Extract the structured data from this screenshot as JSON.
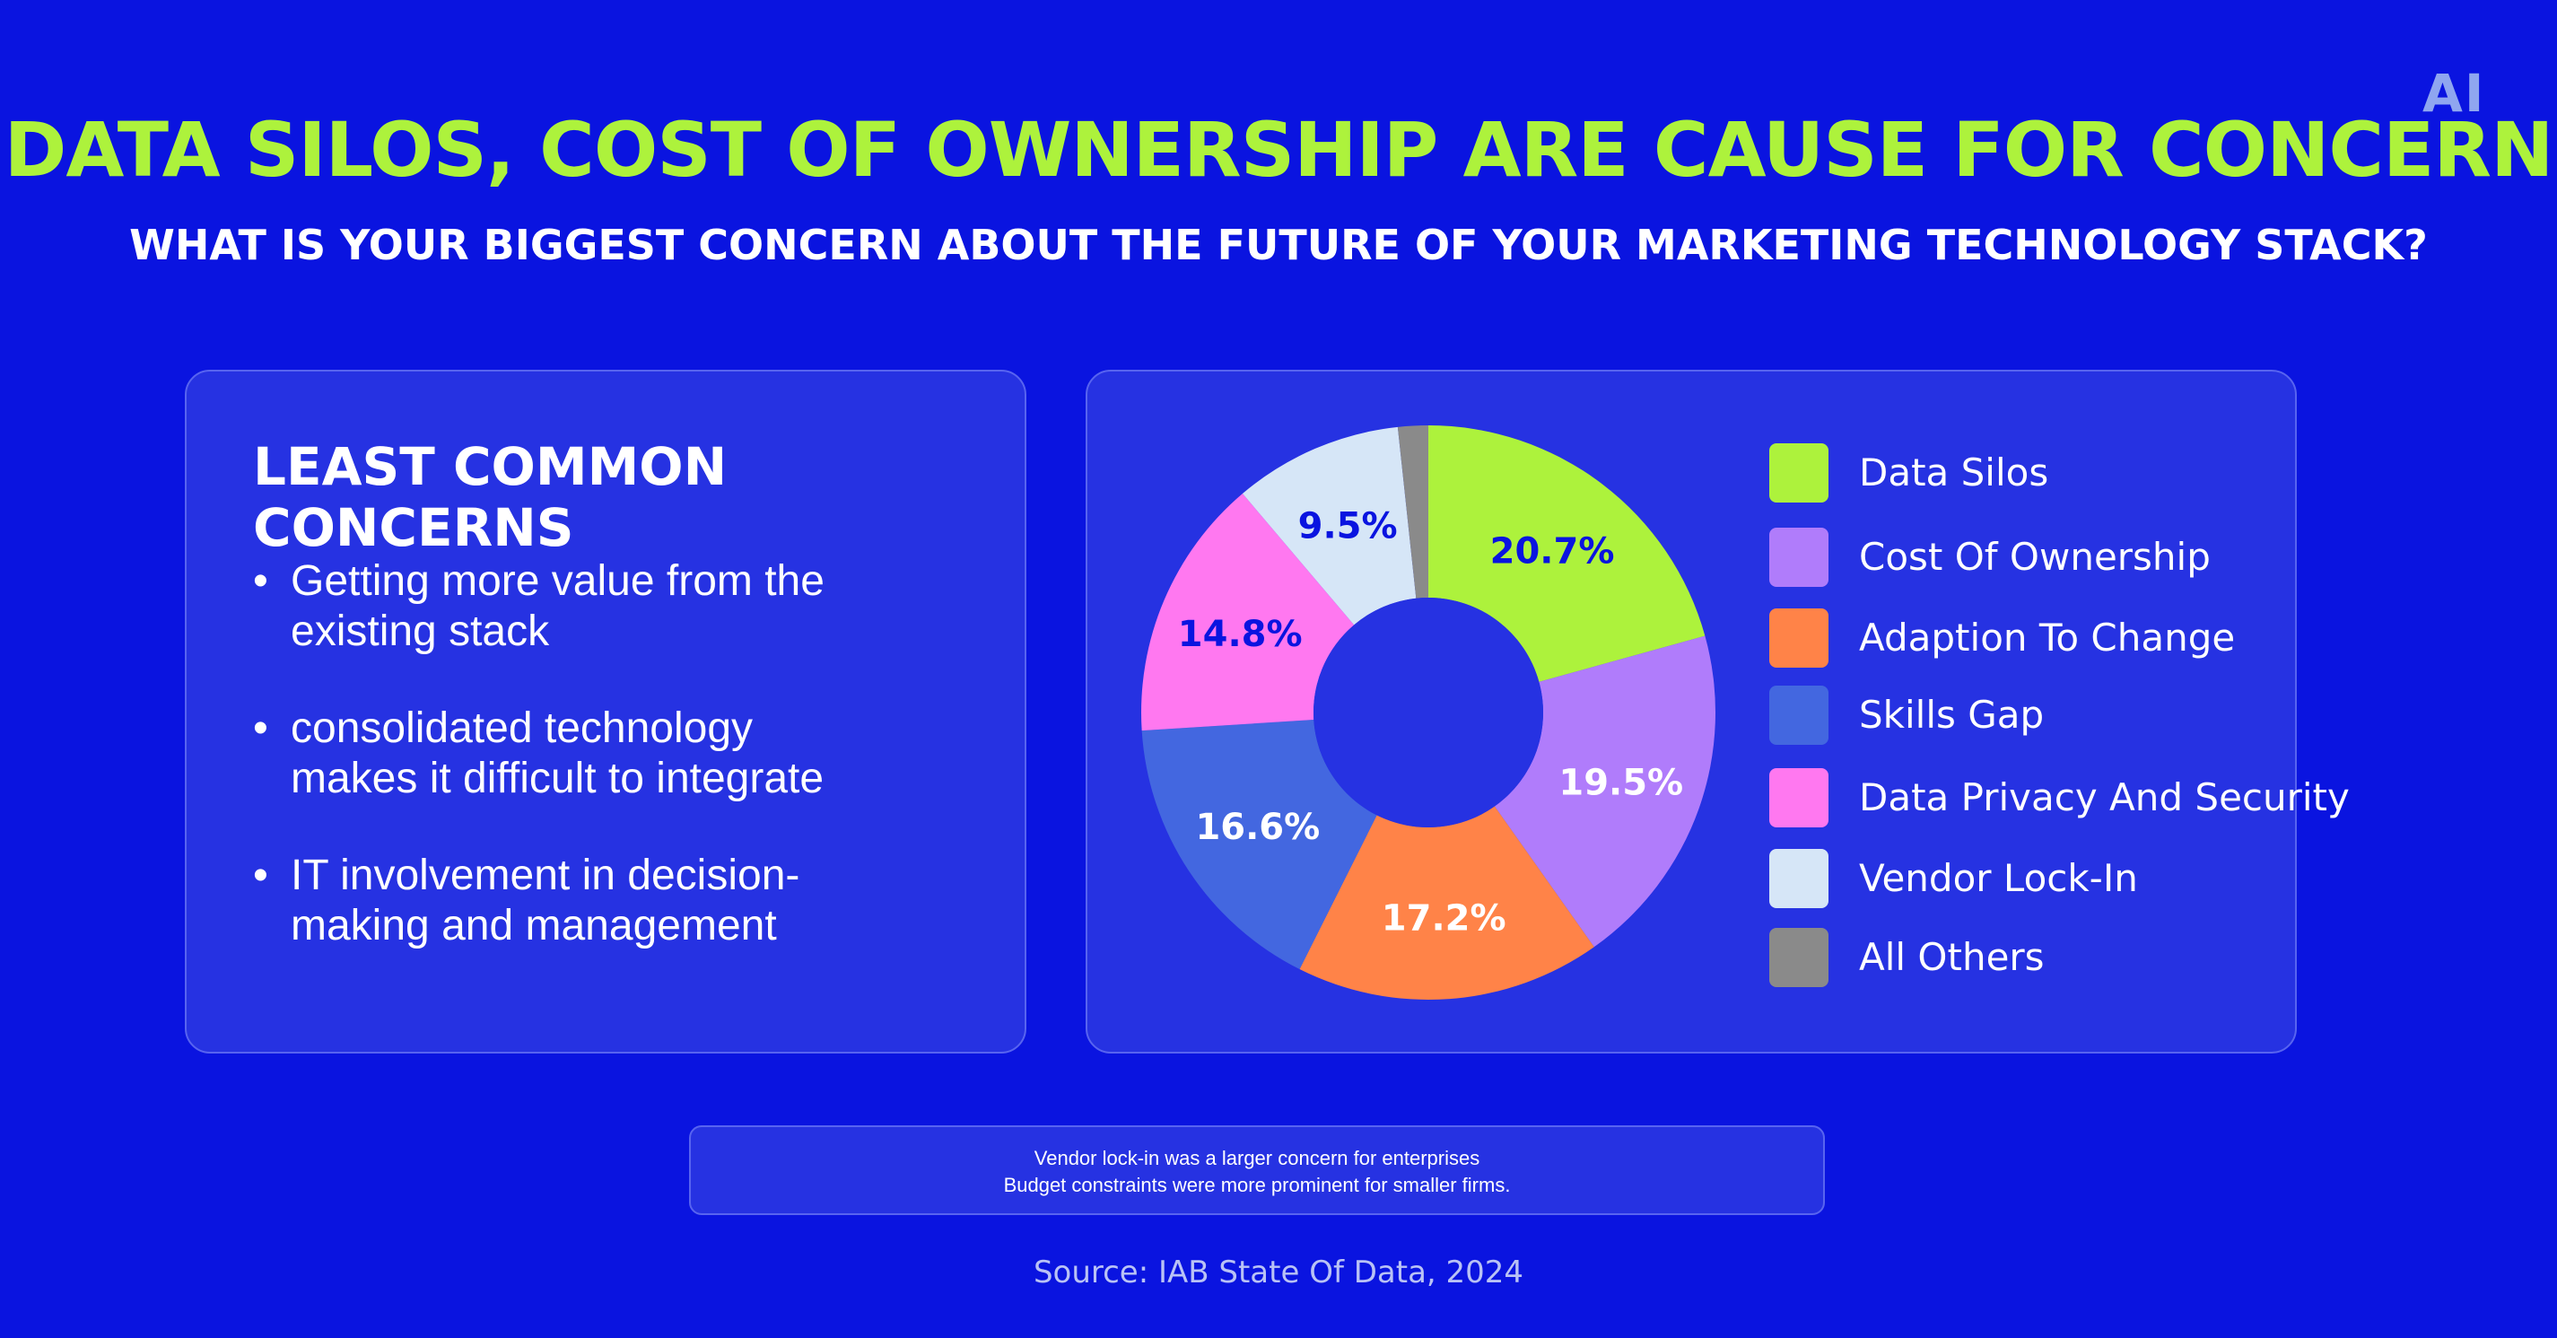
{
  "logo": "AI",
  "title": "DATA SILOS, COST OF OWNERSHIP ARE CAUSE FOR CONCERN",
  "subtitle": "WHAT IS YOUR BIGGEST CONCERN ABOUT THE FUTURE OF YOUR MARKETING TECHNOLOGY STACK?",
  "least_common": {
    "heading": "LEAST COMMON CONCERNS",
    "items": [
      {
        "line1": "Getting more value from the",
        "line2": "existing stack"
      },
      {
        "line1": "consolidated technology",
        "line2": "makes it difficult to integrate"
      },
      {
        "line1": "IT involvement in decision-",
        "line2": "making and management"
      }
    ]
  },
  "chart_data": {
    "type": "pie",
    "categories": [
      "Data Silos",
      "Cost Of Ownership",
      "Adaption To Change",
      "Skills Gap",
      "Data Privacy And Security",
      "Vendor Lock-In",
      "All Others"
    ],
    "values": [
      20.7,
      19.5,
      17.2,
      16.6,
      14.8,
      9.5,
      1.7
    ],
    "data_labels": [
      "20.7%",
      "19.5%",
      "17.2%",
      "16.6%",
      "14.8%",
      "9.5%",
      ""
    ],
    "colors": [
      "#ADF23C",
      "#B07CFB",
      "#FF8348",
      "#4367E0",
      "#FF78F0",
      "#D6E6F7",
      "#8A8A8A"
    ],
    "label_colors": [
      "#0A14E0",
      "#FFFFFF",
      "#FFFFFF",
      "#FFFFFF",
      "#0A14E0",
      "#0A14E0",
      "#FFFFFF"
    ],
    "donut": true,
    "legend_position": "right"
  },
  "note": {
    "line1": "Vendor lock-in was a larger concern for enterprises",
    "line2": "Budget constraints were more prominent for smaller firms."
  },
  "source": "Source: IAB State Of Data, 2024",
  "colors": {
    "background": "#0A14E0",
    "card": "#2632E2",
    "accent": "#ADF23C"
  }
}
